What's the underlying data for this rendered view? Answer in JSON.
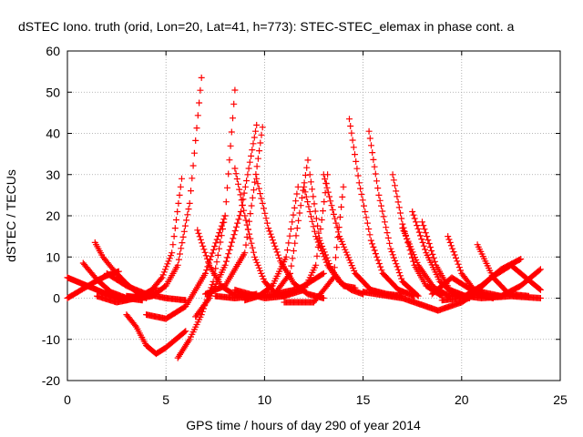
{
  "chart_data": {
    "type": "scatter",
    "title": "dSTEC Iono. truth (orid, Lon=20, Lat=41, h=773): STEC-STEC_elemax in phase cont. a",
    "xlabel": "GPS time / hours of day 290 of year 2014",
    "ylabel": "dSTEC  / TECUs",
    "xlim": [
      0,
      25
    ],
    "ylim": [
      -20,
      60
    ],
    "xticks": [
      0,
      5,
      10,
      15,
      20,
      25
    ],
    "yticks": [
      -20,
      -10,
      0,
      10,
      20,
      30,
      40,
      50,
      60
    ],
    "grid": true,
    "marker": "+",
    "series_color": "#ff0000",
    "series": [
      {
        "x": [
          0.0,
          0.5,
          1.0,
          1.5,
          2.0,
          2.5,
          3.0
        ],
        "y": [
          5.0,
          4.0,
          3.0,
          2.0,
          1.0,
          0.2,
          -0.5
        ]
      },
      {
        "x": [
          0.0,
          0.7,
          1.4,
          2.0,
          2.6
        ],
        "y": [
          0.0,
          2.0,
          4.0,
          5.5,
          6.5
        ]
      },
      {
        "x": [
          0.8,
          1.5,
          2.2,
          3.0,
          3.8
        ],
        "y": [
          8.5,
          4.5,
          1.5,
          0.0,
          -0.5
        ]
      },
      {
        "x": [
          1.4,
          1.8,
          2.4,
          3.0,
          3.5,
          4.0
        ],
        "y": [
          13.5,
          10.0,
          6.5,
          3.5,
          1.5,
          0.0
        ]
      },
      {
        "x": [
          1.5,
          2.5,
          3.5,
          4.5
        ],
        "y": [
          0.5,
          -1.0,
          0.0,
          2.5
        ]
      },
      {
        "x": [
          2.0,
          3.0,
          4.0,
          5.0,
          6.0
        ],
        "y": [
          6.0,
          3.0,
          1.0,
          0.0,
          -0.5
        ]
      },
      {
        "x": [
          3.0,
          3.5,
          4.0,
          4.5,
          5.0,
          5.5,
          6.0
        ],
        "y": [
          -4.0,
          -7.0,
          -11.5,
          -13.5,
          -12.0,
          -10.0,
          -8.0
        ]
      },
      {
        "x": [
          3.0,
          3.6,
          4.1,
          4.8,
          5.3,
          5.8
        ],
        "y": [
          0.5,
          0.2,
          1.0,
          5.0,
          11.0,
          29.0
        ]
      },
      {
        "x": [
          3.7,
          4.3,
          5.0,
          5.6,
          6.2,
          6.8
        ],
        "y": [
          0.0,
          0.5,
          3.0,
          8.0,
          23.0,
          53.5
        ]
      },
      {
        "x": [
          4.0,
          5.0,
          6.0,
          7.0,
          8.0
        ],
        "y": [
          -4.0,
          -5.0,
          -2.0,
          6.0,
          20.0
        ]
      },
      {
        "x": [
          5.6,
          6.2,
          6.8,
          7.4,
          8.0,
          8.5
        ],
        "y": [
          -14.5,
          -10.0,
          -4.0,
          4.0,
          20.0,
          50.5
        ]
      },
      {
        "x": [
          6.5,
          7.2,
          8.0,
          8.8,
          9.6
        ],
        "y": [
          -4.5,
          0.0,
          8.0,
          21.0,
          42.0
        ]
      },
      {
        "x": [
          6.6,
          7.2,
          7.8,
          8.4,
          9.0,
          9.6
        ],
        "y": [
          16.5,
          8.0,
          3.0,
          1.0,
          0.5,
          1.0
        ]
      },
      {
        "x": [
          7.0,
          8.0,
          9.0,
          9.9
        ],
        "y": [
          1.0,
          3.0,
          11.0,
          41.5
        ]
      },
      {
        "x": [
          8.5,
          9.0,
          9.5,
          10.0,
          10.5,
          11.0
        ],
        "y": [
          31.5,
          20.0,
          10.0,
          4.0,
          1.5,
          0.5
        ]
      },
      {
        "x": [
          7.5,
          8.5,
          9.5,
          10.5,
          11.5
        ],
        "y": [
          0.5,
          0.0,
          0.5,
          1.0,
          2.0
        ]
      },
      {
        "x": [
          9.0,
          9.7,
          10.4,
          11.1,
          11.7
        ],
        "y": [
          -0.5,
          0.5,
          3.0,
          10.0,
          27.0
        ]
      },
      {
        "x": [
          9.6,
          10.2,
          10.8,
          11.5,
          12.2,
          13.0
        ],
        "y": [
          29.0,
          17.0,
          9.0,
          3.5,
          1.0,
          0.0
        ]
      },
      {
        "x": [
          8.5,
          10.0,
          11.0,
          12.0,
          13.0
        ],
        "y": [
          2.0,
          0.0,
          0.5,
          3.0,
          6.0
        ]
      },
      {
        "x": [
          10.5,
          11.3,
          12.2
        ],
        "y": [
          1.0,
          6.0,
          33.5
        ]
      },
      {
        "x": [
          12.0,
          12.6,
          13.2,
          13.8,
          14.4,
          15.0
        ],
        "y": [
          27.0,
          15.0,
          8.0,
          4.0,
          2.0,
          1.0
        ]
      },
      {
        "x": [
          11.0,
          12.0,
          12.6,
          13.2
        ],
        "y": [
          0.5,
          2.0,
          8.0,
          30.0
        ]
      },
      {
        "x": [
          12.3,
          12.8,
          13.4,
          14.0,
          14.6
        ],
        "y": [
          30.0,
          14.0,
          7.0,
          3.0,
          2.5
        ]
      },
      {
        "x": [
          11.0,
          12.5,
          13.5,
          14.0
        ],
        "y": [
          -1.0,
          -1.0,
          5.0,
          27.0
        ]
      },
      {
        "x": [
          13.0,
          13.8,
          14.6,
          15.4,
          16.2,
          17.0
        ],
        "y": [
          30.0,
          15.0,
          6.0,
          2.0,
          1.0,
          0.5
        ]
      },
      {
        "x": [
          14.3,
          14.8,
          15.4,
          16.0,
          16.8,
          17.6
        ],
        "y": [
          43.5,
          28.0,
          14.0,
          6.0,
          2.0,
          0.5
        ]
      },
      {
        "x": [
          15.3,
          15.8,
          16.4,
          17.0,
          17.8
        ],
        "y": [
          40.5,
          25.0,
          12.0,
          4.0,
          0.5
        ]
      },
      {
        "x": [
          16.5,
          17.0,
          17.6,
          18.2,
          19.0
        ],
        "y": [
          30.0,
          18.0,
          8.0,
          3.0,
          0.5
        ]
      },
      {
        "x": [
          17.5,
          18.2,
          18.9,
          19.6,
          20.4
        ],
        "y": [
          21.0,
          11.0,
          4.0,
          1.0,
          0.0
        ]
      },
      {
        "x": [
          17.0,
          17.8,
          18.6,
          19.4
        ],
        "y": [
          17.0,
          8.0,
          2.5,
          0.5
        ]
      },
      {
        "x": [
          18.0,
          18.7,
          19.4,
          20.2
        ],
        "y": [
          18.5,
          8.0,
          2.0,
          0.5
        ]
      },
      {
        "x": [
          15.0,
          17.0,
          18.8,
          20.0,
          21.0
        ],
        "y": [
          1.5,
          0.0,
          -3.0,
          -1.0,
          2.0
        ]
      },
      {
        "x": [
          19.3,
          20.0,
          20.8,
          21.6
        ],
        "y": [
          15.0,
          6.0,
          1.0,
          0.0
        ]
      },
      {
        "x": [
          18.5,
          19.5,
          20.5,
          22.0
        ],
        "y": [
          1.0,
          5.0,
          2.0,
          0.5
        ]
      },
      {
        "x": [
          20.8,
          21.6,
          22.4,
          23.4
        ],
        "y": [
          13.0,
          5.0,
          1.0,
          0.5
        ]
      },
      {
        "x": [
          19.0,
          20.0,
          21.0,
          22.0,
          23.0
        ],
        "y": [
          -0.5,
          0.0,
          3.0,
          7.0,
          9.5
        ]
      },
      {
        "x": [
          20.5,
          21.5,
          22.5,
          23.5,
          24.0
        ],
        "y": [
          0.5,
          5.0,
          8.0,
          4.0,
          2.0
        ]
      },
      {
        "x": [
          21.0,
          22.0,
          23.0,
          24.0
        ],
        "y": [
          0.5,
          0.5,
          3.0,
          7.0
        ]
      },
      {
        "x": [
          19.5,
          21.0,
          22.5,
          24.0
        ],
        "y": [
          1.0,
          0.0,
          0.5,
          0.0
        ]
      }
    ]
  }
}
